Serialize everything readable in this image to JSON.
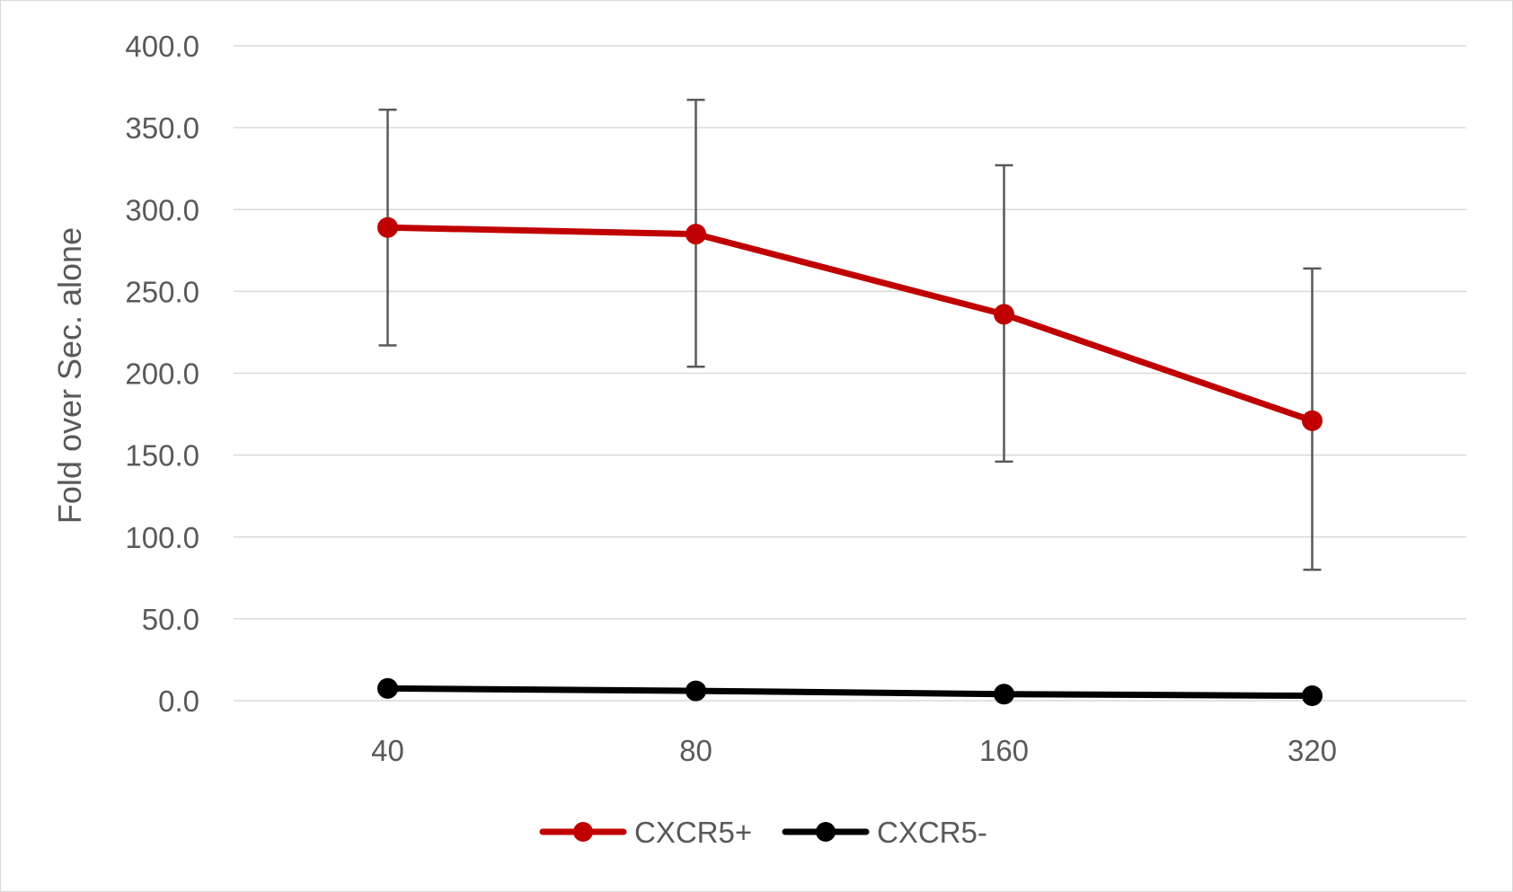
{
  "chart_data": {
    "type": "line",
    "title": "",
    "xlabel": "",
    "ylabel": "Fold over Sec. alone",
    "categories": [
      "40",
      "80",
      "160",
      "320"
    ],
    "ylim": [
      0,
      400
    ],
    "yticks": [
      "0.0",
      "50.0",
      "100.0",
      "150.0",
      "200.0",
      "250.0",
      "300.0",
      "350.0",
      "400.0"
    ],
    "grid": true,
    "legend_position": "bottom",
    "series": [
      {
        "name": "CXCR5+",
        "color": "#c00000",
        "values": [
          289,
          285,
          236,
          171
        ],
        "error_upper": [
          361,
          367,
          327,
          264
        ],
        "error_lower": [
          217,
          204,
          146,
          80
        ]
      },
      {
        "name": "CXCR5-",
        "color": "#000000",
        "values": [
          7.5,
          6,
          4,
          3
        ]
      }
    ]
  }
}
